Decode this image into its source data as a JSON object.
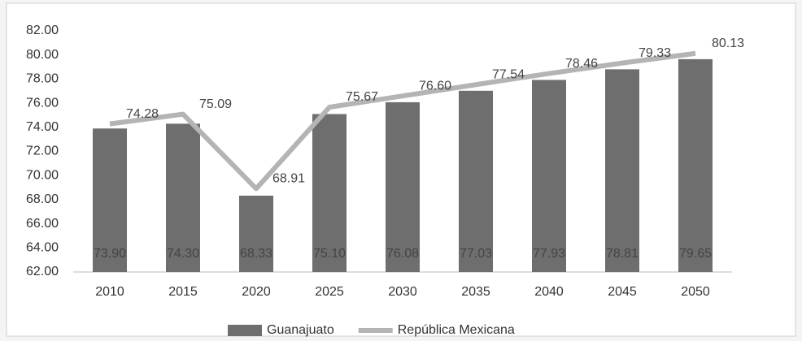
{
  "chart_data": {
    "type": "bar-line",
    "categories": [
      "2010",
      "2015",
      "2020",
      "2025",
      "2030",
      "2035",
      "2040",
      "2045",
      "2050"
    ],
    "series": [
      {
        "name": "Guanajuato",
        "type": "bar",
        "color": "#6e6e6e",
        "values": [
          73.9,
          74.3,
          68.33,
          75.1,
          76.08,
          77.03,
          77.93,
          78.81,
          79.65
        ],
        "value_labels": [
          "73.90",
          "74.30",
          "68.33",
          "75.10",
          "76.08",
          "77.03",
          "77.93",
          "78.81",
          "79.65"
        ]
      },
      {
        "name": "República Mexicana",
        "type": "line",
        "color": "#b4b4b4",
        "values": [
          74.28,
          75.09,
          68.91,
          75.67,
          76.6,
          77.54,
          78.46,
          79.33,
          80.13
        ],
        "value_labels": [
          "74.28",
          "75.09",
          "68.91",
          "75.67",
          "76.60",
          "77.54",
          "78.46",
          "79.33",
          "80.13"
        ]
      }
    ],
    "ylim": [
      62,
      82
    ],
    "yticks": [
      {
        "value": 62,
        "label": "62.00"
      },
      {
        "value": 64,
        "label": "64.00"
      },
      {
        "value": 66,
        "label": "66.00"
      },
      {
        "value": 68,
        "label": "68.00"
      },
      {
        "value": 70,
        "label": "70.00"
      },
      {
        "value": 72,
        "label": "72.00"
      },
      {
        "value": 74,
        "label": "74.00"
      },
      {
        "value": 76,
        "label": "76.00"
      },
      {
        "value": 78,
        "label": "78.00"
      },
      {
        "value": 80,
        "label": "80.00"
      },
      {
        "value": 82,
        "label": "82.00"
      }
    ],
    "grid": false
  }
}
